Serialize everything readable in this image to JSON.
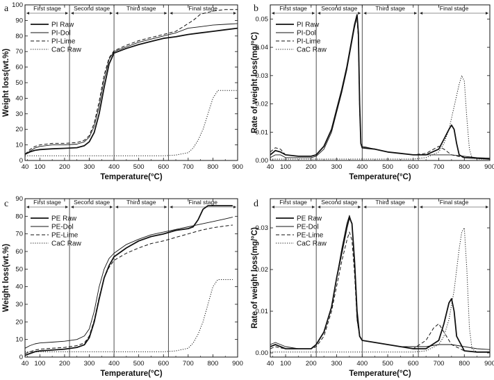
{
  "chart_data": [
    {
      "panel": "a",
      "type": "line",
      "xlabel": "Temperature(°C)",
      "ylabel": "Weight loss(wt.%)",
      "xlim": [
        40,
        900
      ],
      "ylim": [
        0,
        100
      ],
      "xticks": [
        40,
        100,
        200,
        300,
        400,
        500,
        600,
        700,
        800,
        900
      ],
      "yticks": [
        0,
        10,
        20,
        30,
        40,
        50,
        60,
        70,
        80,
        90,
        100
      ],
      "legend": "top-left",
      "stage_boundaries": [
        220,
        400,
        620
      ],
      "stages": [
        "First stage",
        "Second stage",
        "Third stage",
        "Final stage"
      ],
      "series": [
        {
          "name": "PI Raw",
          "style": "solid-bold",
          "x": [
            40,
            60,
            80,
            100,
            150,
            200,
            250,
            280,
            300,
            320,
            340,
            360,
            380,
            400,
            450,
            500,
            550,
            600,
            650,
            700,
            750,
            800,
            850,
            900
          ],
          "y": [
            4,
            5.5,
            6.5,
            7,
            7.5,
            7.8,
            8.2,
            9.5,
            12,
            18,
            30,
            47,
            62,
            69,
            72,
            74.5,
            76.5,
            78.5,
            79.5,
            81,
            82,
            83,
            84,
            85
          ]
        },
        {
          "name": "PI-Dol",
          "style": "solid-thin",
          "x": [
            40,
            60,
            80,
            100,
            150,
            200,
            250,
            280,
            300,
            320,
            340,
            360,
            380,
            400,
            450,
            500,
            550,
            600,
            650,
            700,
            750,
            800,
            850,
            900
          ],
          "y": [
            4,
            6,
            8,
            9,
            10,
            10,
            10.5,
            12,
            15,
            22,
            35,
            52,
            65,
            70,
            73,
            76,
            78,
            80,
            82,
            85,
            86,
            87,
            87.5,
            88
          ]
        },
        {
          "name": "PI-Lime",
          "style": "dashed",
          "x": [
            40,
            60,
            80,
            100,
            150,
            200,
            250,
            280,
            300,
            320,
            340,
            360,
            380,
            400,
            450,
            500,
            550,
            600,
            650,
            680,
            700,
            720,
            750,
            800,
            850,
            900
          ],
          "y": [
            4,
            7,
            9,
            10,
            11,
            11,
            11.5,
            13,
            16,
            24,
            38,
            55,
            66,
            70.5,
            74,
            77,
            79,
            81,
            83,
            86,
            88,
            90,
            94,
            96,
            97,
            97
          ]
        },
        {
          "name": "CaC Raw",
          "style": "dotted",
          "x": [
            40,
            100,
            200,
            300,
            400,
            500,
            600,
            650,
            700,
            720,
            740,
            760,
            780,
            800,
            820,
            850,
            900
          ],
          "y": [
            3,
            3,
            3,
            3,
            3,
            3,
            3,
            3.5,
            5,
            8,
            13,
            20,
            30,
            40,
            45,
            45,
            45
          ]
        }
      ]
    },
    {
      "panel": "b",
      "type": "line",
      "xlabel": "Temperature(°C)",
      "ylabel": "Rate of weight loss(mg/°C)",
      "xlim": [
        40,
        900
      ],
      "ylim": [
        0,
        0.055
      ],
      "xticks": [
        40,
        100,
        200,
        300,
        400,
        500,
        600,
        700,
        800,
        900
      ],
      "yticks": [
        0.0,
        0.01,
        0.02,
        0.03,
        0.04,
        0.05
      ],
      "legend": "top-left",
      "stage_boundaries": [
        220,
        400,
        620
      ],
      "stages": [
        "First stage",
        "Second stage",
        "Third stage",
        "Final stage"
      ],
      "series": [
        {
          "name": "PI Raw",
          "style": "solid-bold",
          "x": [
            40,
            60,
            80,
            100,
            150,
            200,
            220,
            250,
            280,
            300,
            320,
            340,
            360,
            370,
            380,
            385,
            390,
            395,
            400,
            450,
            500,
            550,
            600,
            650,
            700,
            720,
            740,
            750,
            760,
            770,
            780,
            800,
            850,
            900
          ],
          "y": [
            0.002,
            0.0035,
            0.003,
            0.002,
            0.0015,
            0.0015,
            0.002,
            0.005,
            0.011,
            0.018,
            0.025,
            0.033,
            0.043,
            0.048,
            0.0515,
            0.045,
            0.02,
            0.006,
            0.0045,
            0.004,
            0.003,
            0.0025,
            0.002,
            0.002,
            0.004,
            0.0075,
            0.011,
            0.0125,
            0.011,
            0.006,
            0.002,
            0.001,
            0.0008,
            0.0005
          ]
        },
        {
          "name": "PI-Dol",
          "style": "solid-thin",
          "x": [
            40,
            60,
            80,
            100,
            150,
            200,
            220,
            250,
            280,
            300,
            320,
            340,
            360,
            370,
            380,
            385,
            390,
            395,
            400,
            450,
            500,
            550,
            600,
            650,
            700,
            750,
            800,
            850,
            900
          ],
          "y": [
            0.001,
            0.002,
            0.002,
            0.001,
            0.001,
            0.001,
            0.0015,
            0.004,
            0.01,
            0.017,
            0.024,
            0.032,
            0.042,
            0.047,
            0.051,
            0.045,
            0.02,
            0.006,
            0.005,
            0.004,
            0.003,
            0.0025,
            0.002,
            0.002,
            0.002,
            0.002,
            0.0015,
            0.001,
            0.0008
          ]
        },
        {
          "name": "PI-Lime",
          "style": "dashed",
          "x": [
            40,
            60,
            80,
            100,
            150,
            200,
            220,
            250,
            280,
            300,
            320,
            340,
            360,
            370,
            380,
            385,
            390,
            395,
            400,
            450,
            500,
            550,
            600,
            650,
            680,
            700,
            720,
            750,
            800,
            850,
            900
          ],
          "y": [
            0.003,
            0.0045,
            0.004,
            0.002,
            0.0015,
            0.0015,
            0.002,
            0.005,
            0.011,
            0.018,
            0.025,
            0.033,
            0.043,
            0.048,
            0.05,
            0.043,
            0.018,
            0.006,
            0.0045,
            0.004,
            0.003,
            0.0025,
            0.002,
            0.0025,
            0.004,
            0.005,
            0.004,
            0.002,
            0.001,
            0.0008,
            0.0005
          ]
        },
        {
          "name": "CaC Raw",
          "style": "dotted",
          "x": [
            40,
            100,
            200,
            300,
            400,
            500,
            600,
            650,
            700,
            720,
            740,
            760,
            780,
            790,
            800,
            810,
            820,
            830,
            850,
            900
          ],
          "y": [
            0.0005,
            0.0005,
            0.0005,
            0.0005,
            0.0005,
            0.0005,
            0.0005,
            0.001,
            0.003,
            0.006,
            0.011,
            0.019,
            0.027,
            0.03,
            0.028,
            0.015,
            0.004,
            0.001,
            0.0005,
            0.0005
          ]
        }
      ]
    },
    {
      "panel": "c",
      "type": "line",
      "xlabel": "Temperature(°C)",
      "ylabel": "Weight loss(wt.%)",
      "xlim": [
        40,
        900
      ],
      "ylim": [
        0,
        90
      ],
      "xticks": [
        40,
        100,
        200,
        300,
        400,
        500,
        600,
        700,
        800,
        900
      ],
      "yticks": [
        0,
        10,
        20,
        30,
        40,
        50,
        60,
        70,
        80,
        90
      ],
      "legend": "top-left",
      "stage_boundaries": [
        220,
        400,
        620
      ],
      "stages": [
        "First stage",
        "Second stage",
        "Third stage",
        "Final stage"
      ],
      "series": [
        {
          "name": "PE Raw",
          "style": "solid-bold",
          "x": [
            40,
            60,
            80,
            100,
            150,
            200,
            250,
            280,
            300,
            320,
            340,
            360,
            380,
            400,
            450,
            500,
            550,
            600,
            650,
            700,
            720,
            740,
            760,
            780,
            800,
            850,
            880
          ],
          "y": [
            1,
            2,
            3,
            3.5,
            4,
            4.5,
            5.5,
            7,
            11,
            20,
            33,
            45,
            52,
            57,
            62,
            66,
            68.5,
            70,
            72,
            73,
            74,
            78,
            84,
            86,
            86,
            86,
            86
          ]
        },
        {
          "name": "PE-Dol",
          "style": "solid-thin",
          "x": [
            40,
            60,
            80,
            100,
            150,
            200,
            250,
            280,
            300,
            320,
            340,
            360,
            380,
            400,
            450,
            500,
            550,
            600,
            650,
            700,
            750,
            800,
            850,
            880
          ],
          "y": [
            5,
            6.5,
            7.5,
            8,
            8.5,
            9,
            10,
            12,
            16,
            26,
            40,
            50,
            56,
            59,
            64,
            67,
            69.5,
            71,
            72.5,
            74,
            75.5,
            77,
            78.5,
            79.5
          ]
        },
        {
          "name": "PE-Lime",
          "style": "dashed",
          "x": [
            40,
            60,
            80,
            100,
            150,
            200,
            250,
            280,
            300,
            320,
            340,
            360,
            380,
            400,
            450,
            500,
            550,
            600,
            650,
            700,
            750,
            800,
            850,
            880
          ],
          "y": [
            2,
            3,
            4,
            4.5,
            5,
            5.5,
            6.5,
            8,
            12,
            21,
            34,
            45,
            51,
            55,
            59,
            62,
            64.5,
            66,
            68,
            70,
            72,
            73.5,
            74.5,
            75
          ]
        },
        {
          "name": "CaC Raw",
          "style": "dotted",
          "x": [
            40,
            100,
            200,
            300,
            400,
            500,
            600,
            650,
            700,
            720,
            740,
            760,
            780,
            800,
            820,
            850,
            880
          ],
          "y": [
            3,
            3,
            3,
            3,
            3,
            3,
            3,
            3.5,
            5,
            8,
            13,
            20,
            30,
            40,
            44,
            44,
            44
          ]
        }
      ]
    },
    {
      "panel": "d",
      "type": "line",
      "xlabel": "Temperature(°C)",
      "ylabel": "Rate of weight loss(mg/°C)",
      "xlim": [
        40,
        900
      ],
      "ylim": [
        -0.001,
        0.037
      ],
      "xticks": [
        40,
        100,
        200,
        300,
        400,
        500,
        600,
        700,
        800,
        900
      ],
      "yticks": [
        0.0,
        0.01,
        0.02,
        0.03
      ],
      "legend": "top-left",
      "stage_boundaries": [
        220,
        400,
        620
      ],
      "stages": [
        "First stage",
        "Second stage",
        "Third stage",
        "Final stage"
      ],
      "series": [
        {
          "name": "PE Raw",
          "style": "solid-bold",
          "x": [
            40,
            60,
            80,
            100,
            150,
            200,
            220,
            250,
            280,
            300,
            320,
            340,
            350,
            360,
            370,
            380,
            390,
            400,
            450,
            500,
            550,
            600,
            650,
            700,
            720,
            740,
            750,
            760,
            770,
            800,
            850,
            900
          ],
          "y": [
            0.0015,
            0.002,
            0.0015,
            0.001,
            0.001,
            0.001,
            0.002,
            0.005,
            0.011,
            0.018,
            0.024,
            0.03,
            0.0325,
            0.031,
            0.022,
            0.01,
            0.004,
            0.003,
            0.0025,
            0.002,
            0.0015,
            0.001,
            0.001,
            0.003,
            0.007,
            0.012,
            0.013,
            0.01,
            0.004,
            0.0005,
            0.0002,
            0.0002
          ]
        },
        {
          "name": "PE-Dol",
          "style": "solid-thin",
          "x": [
            40,
            60,
            80,
            100,
            150,
            200,
            220,
            250,
            280,
            300,
            320,
            340,
            350,
            360,
            370,
            380,
            390,
            400,
            450,
            500,
            550,
            600,
            650,
            700,
            750,
            800,
            850,
            900
          ],
          "y": [
            0.002,
            0.0025,
            0.002,
            0.0015,
            0.001,
            0.001,
            0.002,
            0.005,
            0.011,
            0.018,
            0.025,
            0.031,
            0.033,
            0.031,
            0.021,
            0.008,
            0.004,
            0.003,
            0.0025,
            0.002,
            0.0015,
            0.0015,
            0.0015,
            0.002,
            0.002,
            0.0015,
            0.001,
            0.0008
          ]
        },
        {
          "name": "PE-Lime",
          "style": "dashed",
          "x": [
            40,
            60,
            80,
            100,
            150,
            200,
            220,
            250,
            280,
            300,
            320,
            340,
            350,
            360,
            370,
            380,
            390,
            400,
            450,
            500,
            550,
            600,
            650,
            680,
            700,
            720,
            750,
            800,
            850,
            900
          ],
          "y": [
            0.001,
            0.0015,
            0.0012,
            0.001,
            0.001,
            0.001,
            0.0015,
            0.004,
            0.01,
            0.016,
            0.022,
            0.027,
            0.029,
            0.027,
            0.019,
            0.008,
            0.004,
            0.003,
            0.0025,
            0.002,
            0.0015,
            0.001,
            0.003,
            0.006,
            0.007,
            0.005,
            0.002,
            0.0005,
            0.0002,
            0.0002
          ]
        },
        {
          "name": "CaC Raw",
          "style": "dotted",
          "x": [
            40,
            100,
            200,
            300,
            400,
            500,
            600,
            650,
            700,
            720,
            740,
            760,
            780,
            790,
            800,
            810,
            820,
            830,
            850,
            900
          ],
          "y": [
            0.0002,
            0.0002,
            0.0002,
            0.0002,
            0.0002,
            0.0002,
            0.0002,
            0.0005,
            0.002,
            0.004,
            0.008,
            0.015,
            0.025,
            0.029,
            0.03,
            0.02,
            0.006,
            0.001,
            0.0002,
            0.0002
          ]
        }
      ]
    }
  ]
}
